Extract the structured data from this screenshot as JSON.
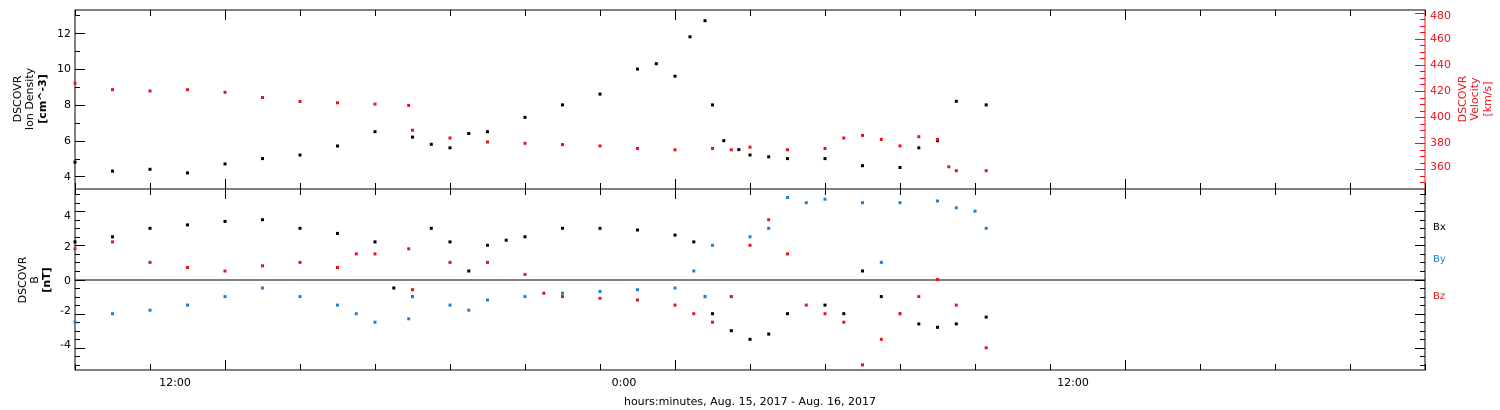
{
  "figure": {
    "xlabel": "hours:minutes, Aug. 15, 2017 - Aug. 16, 2017",
    "x_tick_labels": [
      "12:00",
      "0:00",
      "12:00"
    ]
  },
  "chart_data": [
    {
      "type": "scatter",
      "panel": "plasma",
      "x_unit": "hours since 2017-08-15 00:00 UT",
      "xlim": [
        8.0,
        44.0
      ],
      "ylabel_left": [
        "DSCOVR",
        "Ion Density",
        "[cm^-3]"
      ],
      "ylabel_right": [
        "DSCOVR",
        "Velocity",
        "[km/s]"
      ],
      "ylim_left": [
        3.3,
        13.3
      ],
      "yticks_left": [
        "4",
        "6",
        "8",
        "10",
        "12"
      ],
      "ylim_right": [
        345,
        482
      ],
      "yticks_right": [
        "360",
        "380",
        "400",
        "420",
        "440",
        "460",
        "480"
      ],
      "series": [
        {
          "axis": "left",
          "color": "#000000",
          "x": [
            8.0,
            9.0,
            10.0,
            11.0,
            12.0,
            13.0,
            14.0,
            15.0,
            16.0,
            17.0,
            17.5,
            18.0,
            18.5,
            19.0,
            20.0,
            21.0,
            22.0,
            23.0,
            23.5,
            24.0,
            24.4,
            24.8,
            25.0,
            25.3,
            25.7,
            26.0,
            26.5,
            27.0,
            28.0,
            29.0,
            30.0,
            30.5,
            31.0,
            31.5,
            32.3
          ],
          "y": [
            4.8,
            4.3,
            4.4,
            4.2,
            4.7,
            5.0,
            5.2,
            5.7,
            6.5,
            6.2,
            5.8,
            5.6,
            6.4,
            6.5,
            7.3,
            8.0,
            8.6,
            10.0,
            10.3,
            9.6,
            11.8,
            12.7,
            8.0,
            6.0,
            5.5,
            5.2,
            5.1,
            5.0,
            5.0,
            4.6,
            4.5,
            5.6,
            6.0,
            8.2,
            8.0
          ]
        },
        {
          "axis": "right",
          "color": "#e8141c",
          "x": [
            8.0,
            9.0,
            10.0,
            11.0,
            12.0,
            13.0,
            14.0,
            15.0,
            16.0,
            16.9,
            17.0,
            18.0,
            19.0,
            20.0,
            21.0,
            22.0,
            23.0,
            24.0,
            25.0,
            25.5,
            26.0,
            27.0,
            28.0,
            28.5,
            29.0,
            29.5,
            30.0,
            30.5,
            31.0,
            31.3,
            31.5,
            32.3
          ],
          "y": [
            426,
            421,
            420,
            421,
            419,
            415,
            412,
            411,
            410,
            409,
            390,
            384,
            381,
            380,
            379,
            378,
            376,
            375,
            376,
            375,
            377,
            375,
            376,
            384,
            386,
            383,
            378,
            385,
            383,
            362,
            359,
            359
          ]
        }
      ]
    },
    {
      "type": "scatter",
      "panel": "magnetic-field",
      "x_unit": "hours since 2017-08-15 00:00 UT",
      "xlim": [
        8.0,
        44.0
      ],
      "ylabel_left": [
        "DSCOVR",
        "B",
        "[nT]"
      ],
      "ylim": [
        -5.3,
        5.3
      ],
      "yticks": [
        "-4",
        "-2",
        "0",
        "2",
        "4"
      ],
      "zero_line": true,
      "legend": [
        {
          "text": "Bx",
          "color": "#000000"
        },
        {
          "text": "By",
          "color": "#1e7fd8"
        },
        {
          "text": "Bz",
          "color": "#e8141c"
        }
      ],
      "legend_position": "right",
      "series": [
        {
          "name": "Bx",
          "color": "#000000",
          "x": [
            8.0,
            9.0,
            10.0,
            11.0,
            12.0,
            13.0,
            14.0,
            15.0,
            16.0,
            16.5,
            17.0,
            17.5,
            18.0,
            18.5,
            19.0,
            19.5,
            20.0,
            21.0,
            22.0,
            23.0,
            24.0,
            24.5,
            24.8,
            25.0,
            25.5,
            26.0,
            26.5,
            27.0,
            28.0,
            28.5,
            29.0,
            29.5,
            30.0,
            30.5,
            31.0,
            31.5,
            32.3
          ],
          "y": [
            2.2,
            2.5,
            3.0,
            3.2,
            3.4,
            3.5,
            3.0,
            2.7,
            2.2,
            -0.5,
            -1.0,
            3.0,
            2.2,
            0.5,
            2.0,
            2.3,
            2.5,
            3.0,
            3.0,
            2.9,
            2.6,
            2.2,
            -1.0,
            -2.0,
            -3.0,
            -3.5,
            -3.2,
            -2.0,
            -1.5,
            -2.0,
            0.5,
            -1.0,
            -2.0,
            -2.6,
            -2.8,
            -2.6,
            -2.2
          ]
        },
        {
          "name": "By",
          "color": "#1e7fd8",
          "x": [
            8.0,
            9.0,
            10.0,
            11.0,
            12.0,
            13.0,
            14.0,
            15.0,
            15.5,
            16.0,
            16.9,
            17.0,
            18.0,
            18.5,
            19.0,
            20.0,
            21.0,
            22.0,
            23.0,
            24.0,
            24.5,
            24.8,
            25.0,
            25.5,
            26.0,
            26.5,
            27.0,
            27.5,
            28.0,
            29.0,
            29.5,
            30.0,
            31.0,
            31.5,
            32.0,
            32.3
          ],
          "y": [
            -2.5,
            -2.0,
            -1.8,
            -1.5,
            -1.0,
            -0.5,
            -1.0,
            -1.5,
            -2.0,
            -2.5,
            -2.3,
            -1.0,
            -1.5,
            -1.8,
            -1.2,
            -1.0,
            -0.8,
            -0.7,
            -0.6,
            -0.5,
            0.5,
            -1.0,
            2.0,
            -1.0,
            2.5,
            3.0,
            4.8,
            4.5,
            4.7,
            4.5,
            1.0,
            4.5,
            4.6,
            4.2,
            4.0,
            3.0
          ]
        },
        {
          "name": "Bz",
          "color": "#e8141c",
          "x": [
            8.0,
            9.0,
            10.0,
            11.0,
            12.0,
            13.0,
            14.0,
            15.0,
            15.5,
            16.0,
            16.9,
            17.0,
            18.0,
            19.0,
            20.0,
            20.5,
            21.0,
            22.0,
            23.0,
            24.0,
            24.5,
            25.0,
            25.5,
            26.0,
            26.5,
            27.0,
            27.5,
            28.0,
            28.5,
            29.0,
            29.5,
            30.0,
            30.5,
            31.0,
            31.5,
            32.3
          ],
          "y": [
            1.8,
            2.2,
            1.0,
            0.7,
            0.5,
            0.8,
            1.0,
            0.7,
            1.5,
            1.5,
            1.8,
            -0.6,
            1.0,
            1.0,
            0.3,
            -0.8,
            -1.0,
            -1.1,
            -1.2,
            -1.5,
            -2.0,
            -2.5,
            -1.0,
            2.0,
            3.5,
            1.5,
            -1.5,
            -2.0,
            -2.5,
            -5.0,
            -3.5,
            -2.0,
            -1.0,
            0.0,
            -1.5,
            -4.0
          ]
        }
      ]
    }
  ]
}
